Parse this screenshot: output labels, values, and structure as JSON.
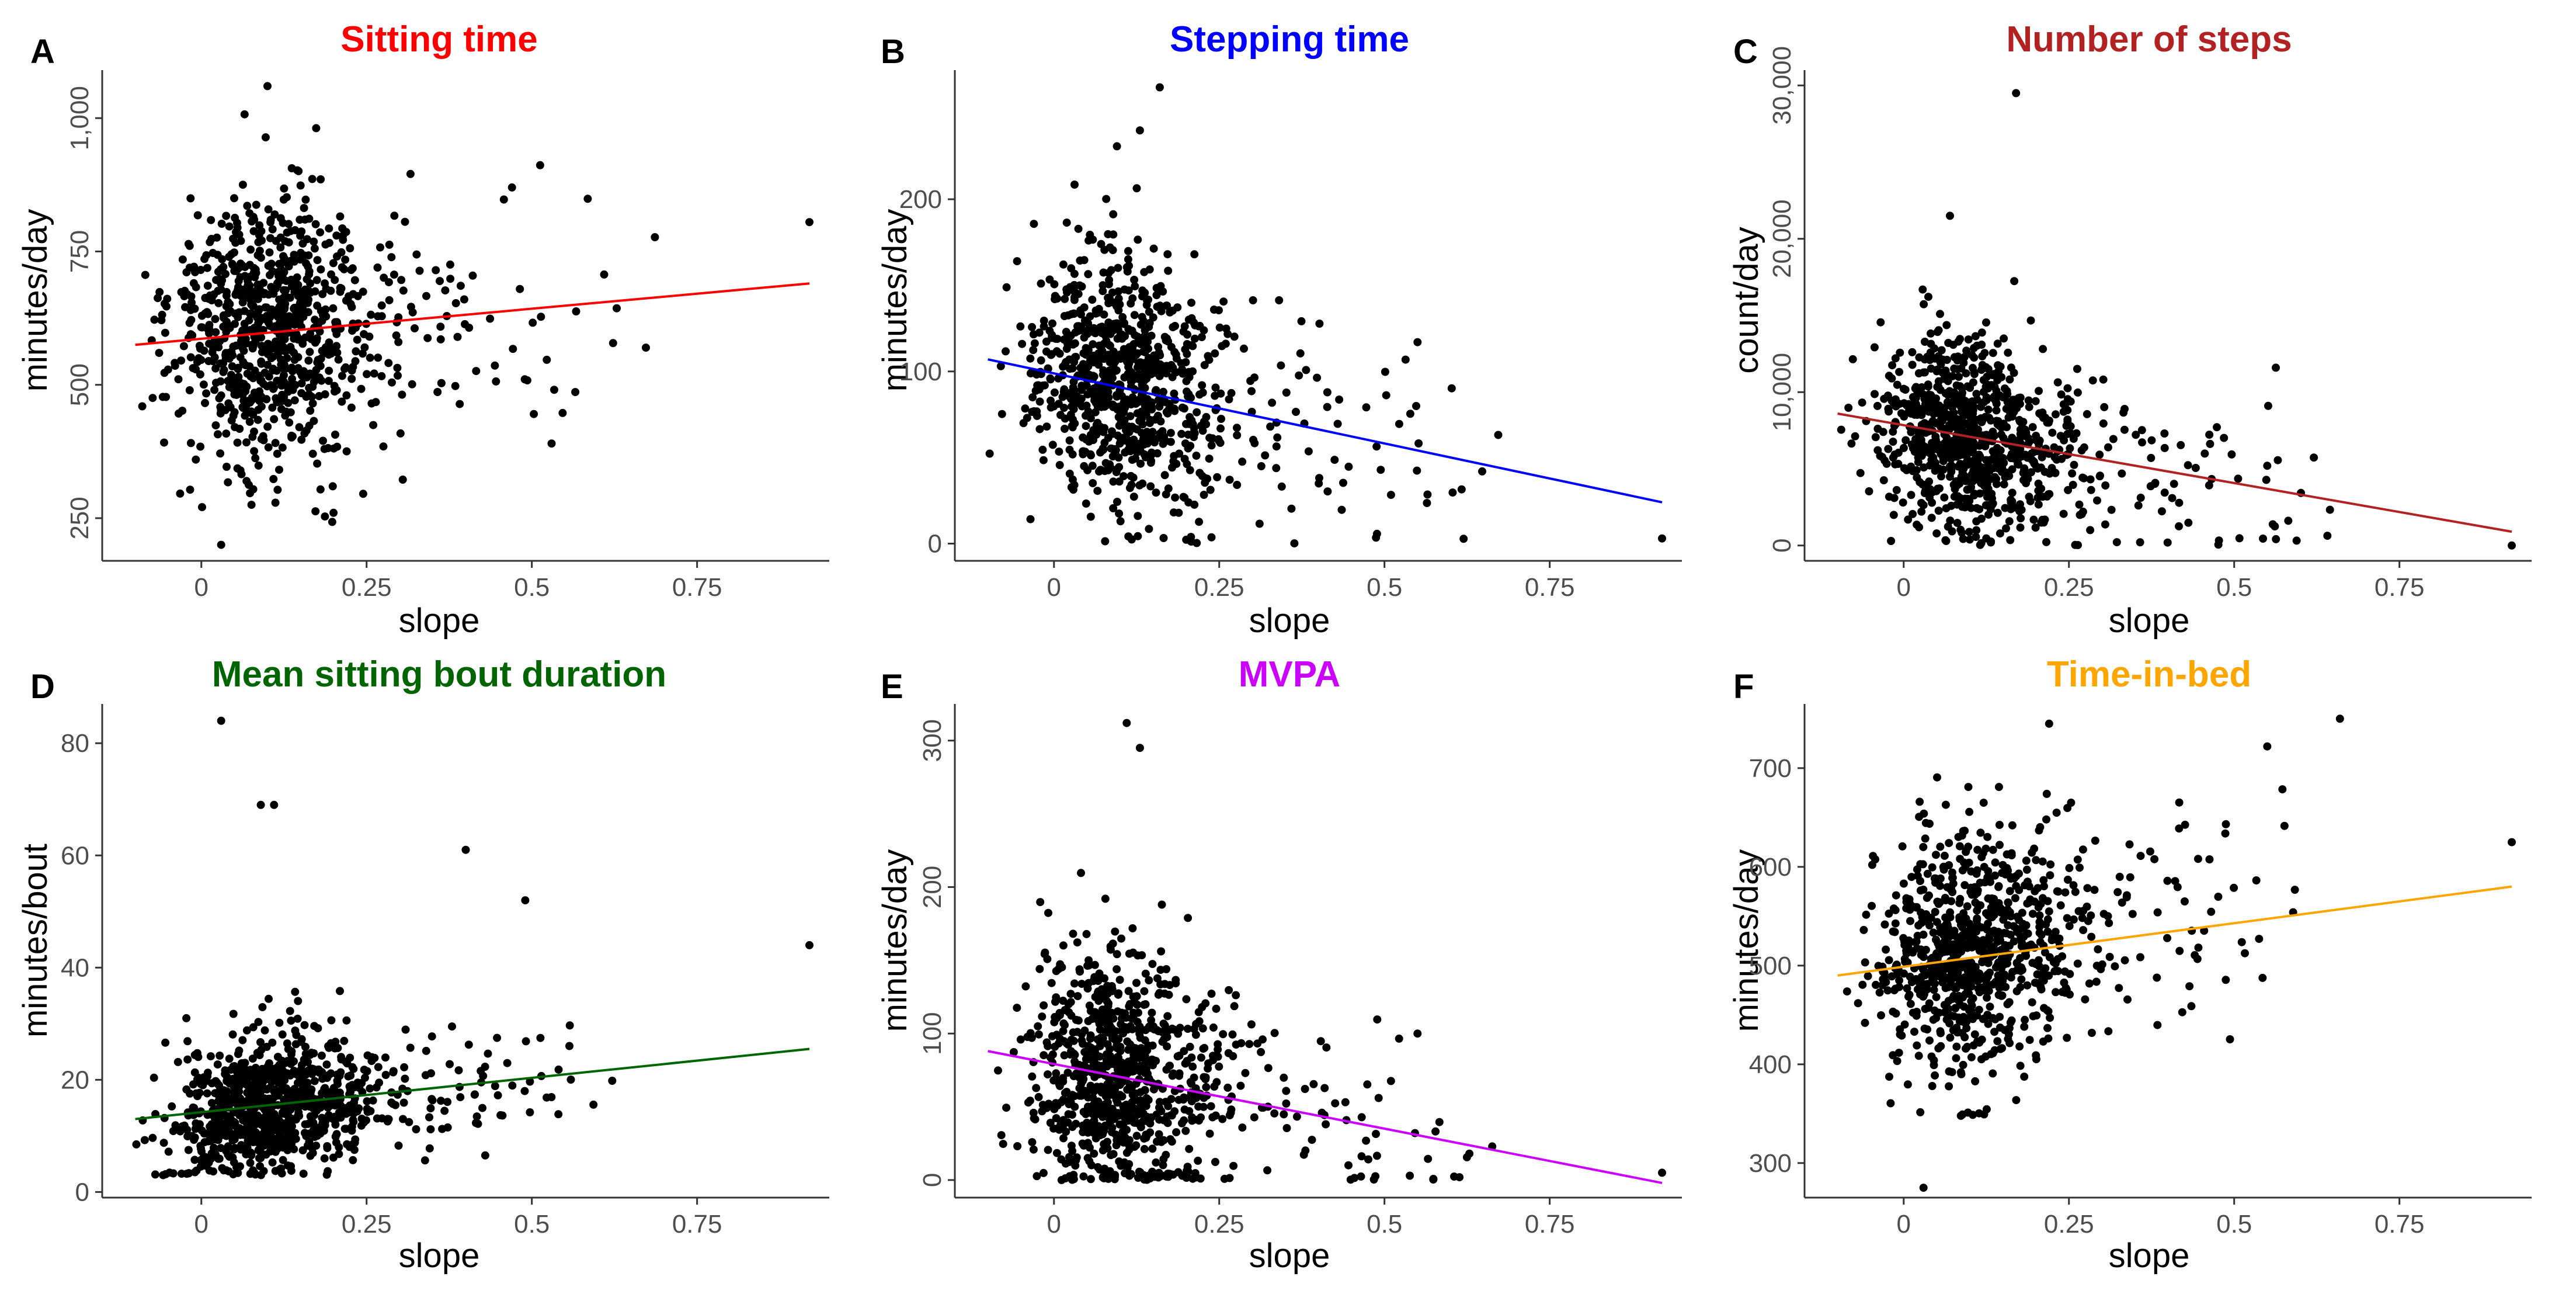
{
  "figure": {
    "background": "#ffffff"
  },
  "chart_data": [
    {
      "type": "scatter",
      "id": "A",
      "letter": "A",
      "title": "Sitting time",
      "title_color": "#ff0000",
      "xlabel": "slope",
      "ylabel": "minutes/day",
      "xlim": [
        -0.15,
        0.95
      ],
      "ylim": [
        170,
        1090
      ],
      "xticks": [
        0,
        0.25,
        0.5,
        0.75
      ],
      "xtick_labels": [
        "0",
        "0.25",
        "0.5",
        "0.75"
      ],
      "yticks": [
        250,
        500,
        750,
        1000
      ],
      "ytick_labels": [
        "250",
        "500",
        "750",
        "1,000"
      ],
      "ytick_rotated": true,
      "fit_line": {
        "x": [
          -0.1,
          0.92
        ],
        "y": [
          575,
          690
        ],
        "color": "#ff0000"
      },
      "points": {
        "n": 900,
        "cx": 0.095,
        "sx": 0.065,
        "cy": 600,
        "sy": 130,
        "ymin": 195,
        "ymax": 1060
      },
      "notable_points": [
        [
          0.1,
          1060
        ],
        [
          0.03,
          200
        ],
        [
          0.92,
          805
        ],
        [
          0.47,
          870
        ],
        [
          0.2,
          260
        ]
      ]
    },
    {
      "type": "scatter",
      "id": "B",
      "letter": "B",
      "title": "Stepping time",
      "title_color": "#0000ff",
      "xlabel": "slope",
      "ylabel": "minutes/day",
      "xlim": [
        -0.15,
        0.95
      ],
      "ylim": [
        -10,
        275
      ],
      "xticks": [
        0,
        0.25,
        0.5,
        0.75
      ],
      "xtick_labels": [
        "0",
        "0.25",
        "0.5",
        "0.75"
      ],
      "yticks": [
        0,
        100,
        200
      ],
      "ytick_labels": [
        "0",
        "100",
        "200"
      ],
      "ytick_rotated": false,
      "fit_line": {
        "x": [
          -0.1,
          0.92
        ],
        "y": [
          107,
          24
        ],
        "color": "#0000ff"
      },
      "points": {
        "n": 900,
        "cx": 0.095,
        "sx": 0.065,
        "cy": 92,
        "sy": 38,
        "ymin": 0,
        "ymax": 265
      },
      "notable_points": [
        [
          0.16,
          265
        ],
        [
          0.92,
          3
        ],
        [
          0.55,
          117
        ],
        [
          0.13,
          240
        ]
      ]
    },
    {
      "type": "scatter",
      "id": "C",
      "letter": "C",
      "title": "Number of steps",
      "title_color": "#b22222",
      "xlabel": "slope",
      "ylabel": "count/day",
      "xlim": [
        -0.15,
        0.95
      ],
      "ylim": [
        -1000,
        31000
      ],
      "xticks": [
        0,
        0.25,
        0.5,
        0.75
      ],
      "xtick_labels": [
        "0",
        "0.25",
        "0.5",
        "0.75"
      ],
      "yticks": [
        0,
        10000,
        20000,
        30000
      ],
      "ytick_labels": [
        "0",
        "10,000",
        "20,000",
        "30,000"
      ],
      "ytick_rotated": true,
      "fit_line": {
        "x": [
          -0.1,
          0.92
        ],
        "y": [
          8600,
          900
        ],
        "color": "#b22222"
      },
      "points": {
        "n": 900,
        "cx": 0.095,
        "sx": 0.065,
        "cy": 7200,
        "sy": 3200,
        "ymin": 0,
        "ymax": 29500
      },
      "notable_points": [
        [
          0.17,
          29500
        ],
        [
          0.92,
          0
        ],
        [
          0.55,
          5200
        ],
        [
          0.07,
          21500
        ]
      ]
    },
    {
      "type": "scatter",
      "id": "D",
      "letter": "D",
      "title": "Mean sitting bout duration",
      "title_color": "#006400",
      "xlabel": "slope",
      "ylabel": "minutes/bout",
      "xlim": [
        -0.15,
        0.95
      ],
      "ylim": [
        -1,
        87
      ],
      "xticks": [
        0,
        0.25,
        0.5,
        0.75
      ],
      "xtick_labels": [
        "0",
        "0.25",
        "0.5",
        "0.75"
      ],
      "yticks": [
        0,
        20,
        40,
        60,
        80
      ],
      "ytick_labels": [
        "0",
        "20",
        "40",
        "60",
        "80"
      ],
      "ytick_rotated": false,
      "fit_line": {
        "x": [
          -0.1,
          0.92
        ],
        "y": [
          13,
          25.5
        ],
        "color": "#006400"
      },
      "points": {
        "n": 900,
        "cx": 0.095,
        "sx": 0.065,
        "cy": 15,
        "sy": 6,
        "ymin": 3,
        "ymax": 84
      },
      "notable_points": [
        [
          0.03,
          84
        ],
        [
          0.09,
          69
        ],
        [
          0.11,
          69
        ],
        [
          0.4,
          61
        ],
        [
          0.92,
          44
        ],
        [
          0.49,
          52
        ]
      ]
    },
    {
      "type": "scatter",
      "id": "E",
      "letter": "E",
      "title": "MVPA",
      "title_color": "#cc00ff",
      "xlabel": "slope",
      "ylabel": "minutes/day",
      "xlim": [
        -0.15,
        0.95
      ],
      "ylim": [
        -12,
        325
      ],
      "xticks": [
        0,
        0.25,
        0.5,
        0.75
      ],
      "xtick_labels": [
        "0",
        "0.25",
        "0.5",
        "0.75"
      ],
      "yticks": [
        0,
        100,
        200,
        300
      ],
      "ytick_labels": [
        "0",
        "100",
        "200",
        "300"
      ],
      "ytick_rotated": true,
      "fit_line": {
        "x": [
          -0.1,
          0.92
        ],
        "y": [
          88,
          -2
        ],
        "color": "#cc00ff"
      },
      "points": {
        "n": 900,
        "cx": 0.095,
        "sx": 0.065,
        "cy": 72,
        "sy": 42,
        "ymin": 0,
        "ymax": 312
      },
      "notable_points": [
        [
          0.11,
          312
        ],
        [
          0.13,
          295
        ],
        [
          0.92,
          5
        ],
        [
          0.55,
          100
        ]
      ]
    },
    {
      "type": "scatter",
      "id": "F",
      "letter": "F",
      "title": "Time-in-bed",
      "title_color": "#ffa500",
      "xlabel": "slope",
      "ylabel": "minutes/day",
      "xlim": [
        -0.15,
        0.95
      ],
      "ylim": [
        265,
        765
      ],
      "xticks": [
        0,
        0.25,
        0.5,
        0.75
      ],
      "xtick_labels": [
        "0",
        "0.25",
        "0.5",
        "0.75"
      ],
      "yticks": [
        300,
        400,
        500,
        600,
        700
      ],
      "ytick_labels": [
        "300",
        "400",
        "500",
        "600",
        "700"
      ],
      "ytick_rotated": false,
      "fit_line": {
        "x": [
          -0.1,
          0.92
        ],
        "y": [
          490,
          580
        ],
        "color": "#ffa500"
      },
      "points": {
        "n": 900,
        "cx": 0.095,
        "sx": 0.065,
        "cy": 515,
        "sy": 62,
        "ymin": 275,
        "ymax": 750
      },
      "notable_points": [
        [
          0.03,
          275
        ],
        [
          0.66,
          750
        ],
        [
          0.22,
          745
        ],
        [
          0.92,
          625
        ],
        [
          0.55,
          722
        ]
      ]
    }
  ]
}
